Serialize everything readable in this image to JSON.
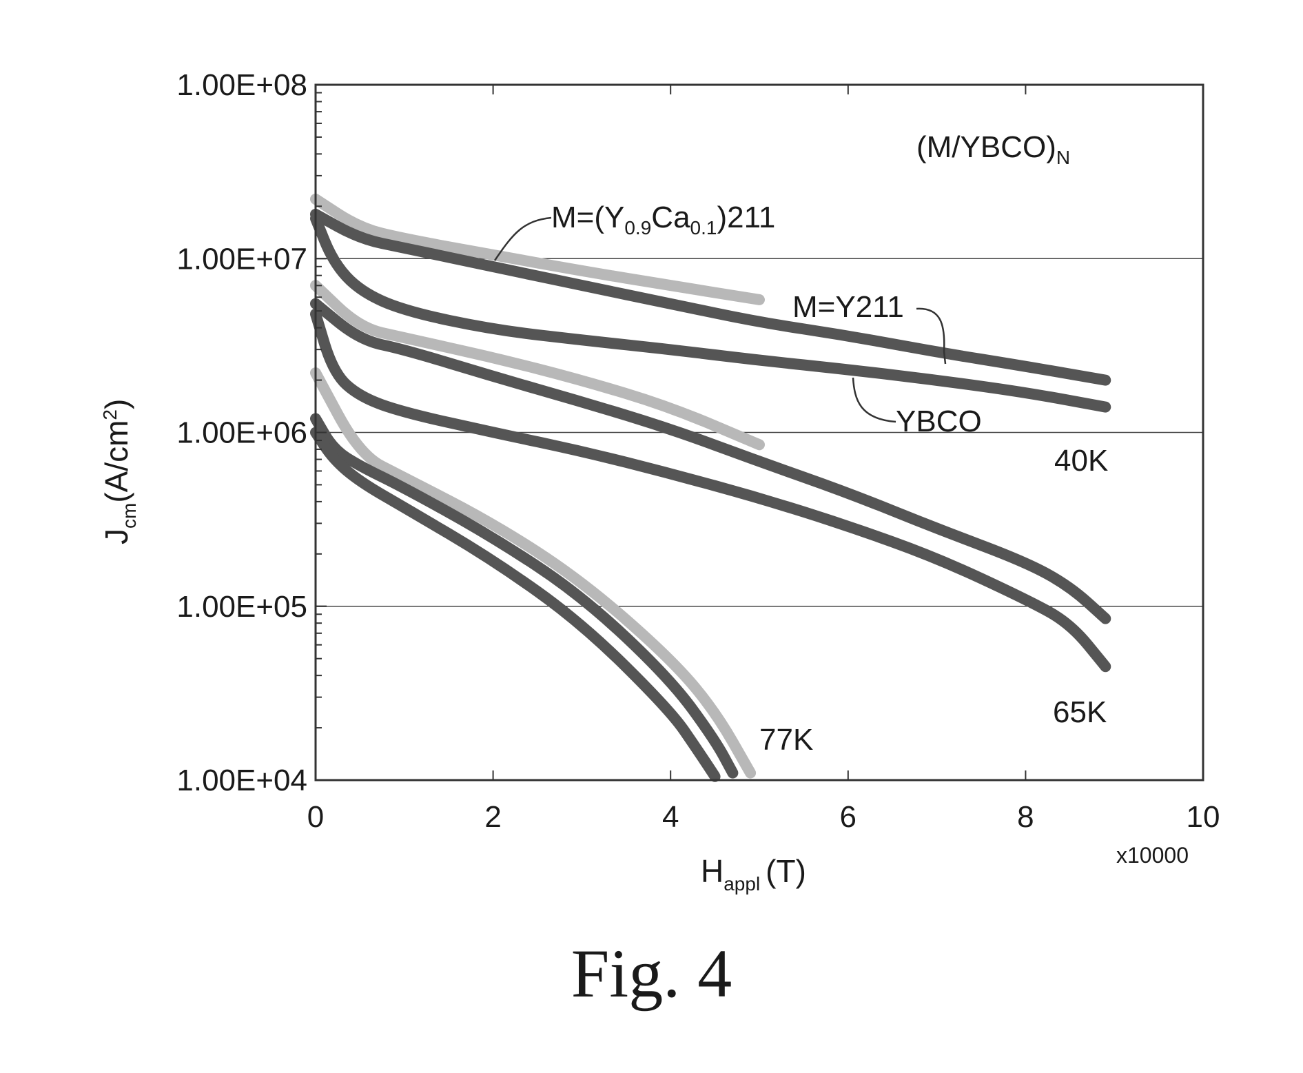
{
  "caption": "Fig. 4",
  "chart_data": {
    "type": "line",
    "title": "(M/YBCO)N",
    "xlabel": "Happl (T)",
    "xlabel_main": "H",
    "xlabel_sub": "appl",
    "xlabel_unit": "(T)",
    "x_multiplier": "x10000",
    "ylabel": "Jcm(A/cm2)",
    "ylabel_main": "J",
    "ylabel_sub": "cm",
    "ylabel_unit": "(A/cm",
    "ylabel_sup": "2",
    "ylabel_close": ")",
    "xlim": [
      0,
      10
    ],
    "ylim": [
      10000,
      100000000
    ],
    "yscale": "log",
    "grid": "horizontal at decades",
    "x_ticks": [
      "0",
      "2",
      "4",
      "6",
      "8",
      "10"
    ],
    "y_ticks": [
      "1.00E+04",
      "1.00E+05",
      "1.00E+06",
      "1.00E+07",
      "1.00E+08"
    ],
    "annotations": {
      "title_main": "(M/YBCO)",
      "title_sub": "N",
      "ca_label_prefix": "M=(Y",
      "ca_sub1": "0.9",
      "ca_mid": "Ca",
      "ca_sub2": "0.1",
      "ca_suffix": ")211",
      "y211_label": "M=Y211",
      "ybco_label": "YBCO",
      "t40": "40K",
      "t65": "65K",
      "t77": "77K"
    },
    "series": [
      {
        "group": "40K",
        "style": "light",
        "x": [
          0,
          0.5,
          1,
          2,
          3,
          4,
          5
        ],
        "y": [
          22000000,
          15000000,
          13000000,
          10500000,
          8500000,
          7000000,
          5800000
        ]
      },
      {
        "group": "40K",
        "style": "dark",
        "x": [
          0,
          0.5,
          1,
          2,
          3,
          4,
          5,
          6,
          7,
          8,
          8.9
        ],
        "y": [
          18000000,
          13000000,
          11500000,
          9000000,
          7000000,
          5500000,
          4300000,
          3600000,
          2900000,
          2400000,
          2000000
        ]
      },
      {
        "group": "40K",
        "style": "dark",
        "x": [
          0,
          0.2,
          0.5,
          1,
          2,
          3,
          4,
          5,
          6,
          7,
          8,
          8.9
        ],
        "y": [
          17000000,
          9500000,
          6500000,
          5000000,
          3900000,
          3400000,
          3000000,
          2600000,
          2300000,
          2000000,
          1700000,
          1400000
        ]
      },
      {
        "group": "65K",
        "style": "light",
        "x": [
          0,
          0.5,
          1,
          2,
          3,
          4,
          5
        ],
        "y": [
          7000000,
          4000000,
          3500000,
          2700000,
          2000000,
          1400000,
          850000
        ]
      },
      {
        "group": "65K",
        "style": "dark",
        "x": [
          0,
          0.5,
          1,
          2,
          3,
          4,
          5,
          6,
          7,
          8,
          8.5,
          8.9
        ],
        "y": [
          5500000,
          3400000,
          3000000,
          2100000,
          1500000,
          1050000,
          680000,
          450000,
          280000,
          180000,
          130000,
          85000
        ]
      },
      {
        "group": "65K",
        "style": "dark",
        "x": [
          0,
          0.2,
          0.5,
          1,
          2,
          3,
          4,
          5,
          6,
          7,
          8,
          8.5,
          8.9
        ],
        "y": [
          4800000,
          2200000,
          1600000,
          1300000,
          1000000,
          780000,
          580000,
          420000,
          290000,
          190000,
          110000,
          80000,
          45000
        ]
      },
      {
        "group": "77K",
        "style": "light",
        "x": [
          0,
          0.5,
          1,
          2,
          3,
          4,
          4.5,
          4.9
        ],
        "y": [
          2200000,
          740000,
          550000,
          300000,
          140000,
          50000,
          25000,
          11000
        ]
      },
      {
        "group": "77K",
        "style": "dark",
        "x": [
          0,
          0.2,
          0.5,
          1,
          2,
          3,
          4,
          4.5,
          4.7
        ],
        "y": [
          1200000,
          800000,
          640000,
          480000,
          250000,
          115000,
          38000,
          17000,
          11000
        ]
      },
      {
        "group": "77K",
        "style": "dark",
        "x": [
          0,
          0.2,
          0.5,
          1,
          2,
          3,
          4,
          4.3,
          4.5
        ],
        "y": [
          1000000,
          700000,
          520000,
          370000,
          185000,
          80000,
          25000,
          15000,
          10500
        ]
      }
    ],
    "colors": {
      "light": "#b8b8b8",
      "dark": "#555555",
      "frame": "#333333",
      "grid": "#444444"
    }
  }
}
